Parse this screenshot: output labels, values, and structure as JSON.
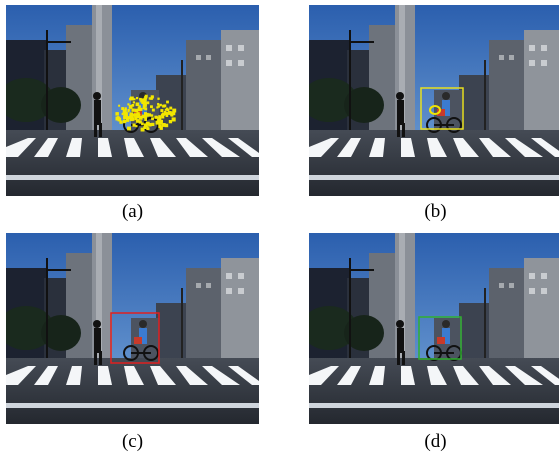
{
  "panels": [
    {
      "id": "a",
      "caption": "(a)",
      "overlay": "particles",
      "overlay_color": "#f2e600"
    },
    {
      "id": "b",
      "caption": "(b)",
      "overlay": "box-with-ellipse",
      "overlay_color": "#e8e020"
    },
    {
      "id": "c",
      "caption": "(c)",
      "overlay": "box",
      "overlay_color": "#e02020"
    },
    {
      "id": "d",
      "caption": "(d)",
      "overlay": "box",
      "overlay_color": "#30b030"
    }
  ],
  "colors": {
    "sky_top": "#2b5fae",
    "sky_bottom": "#6fa0d8",
    "road": "#3a3f48",
    "crosswalk": "#f4f6f8"
  }
}
